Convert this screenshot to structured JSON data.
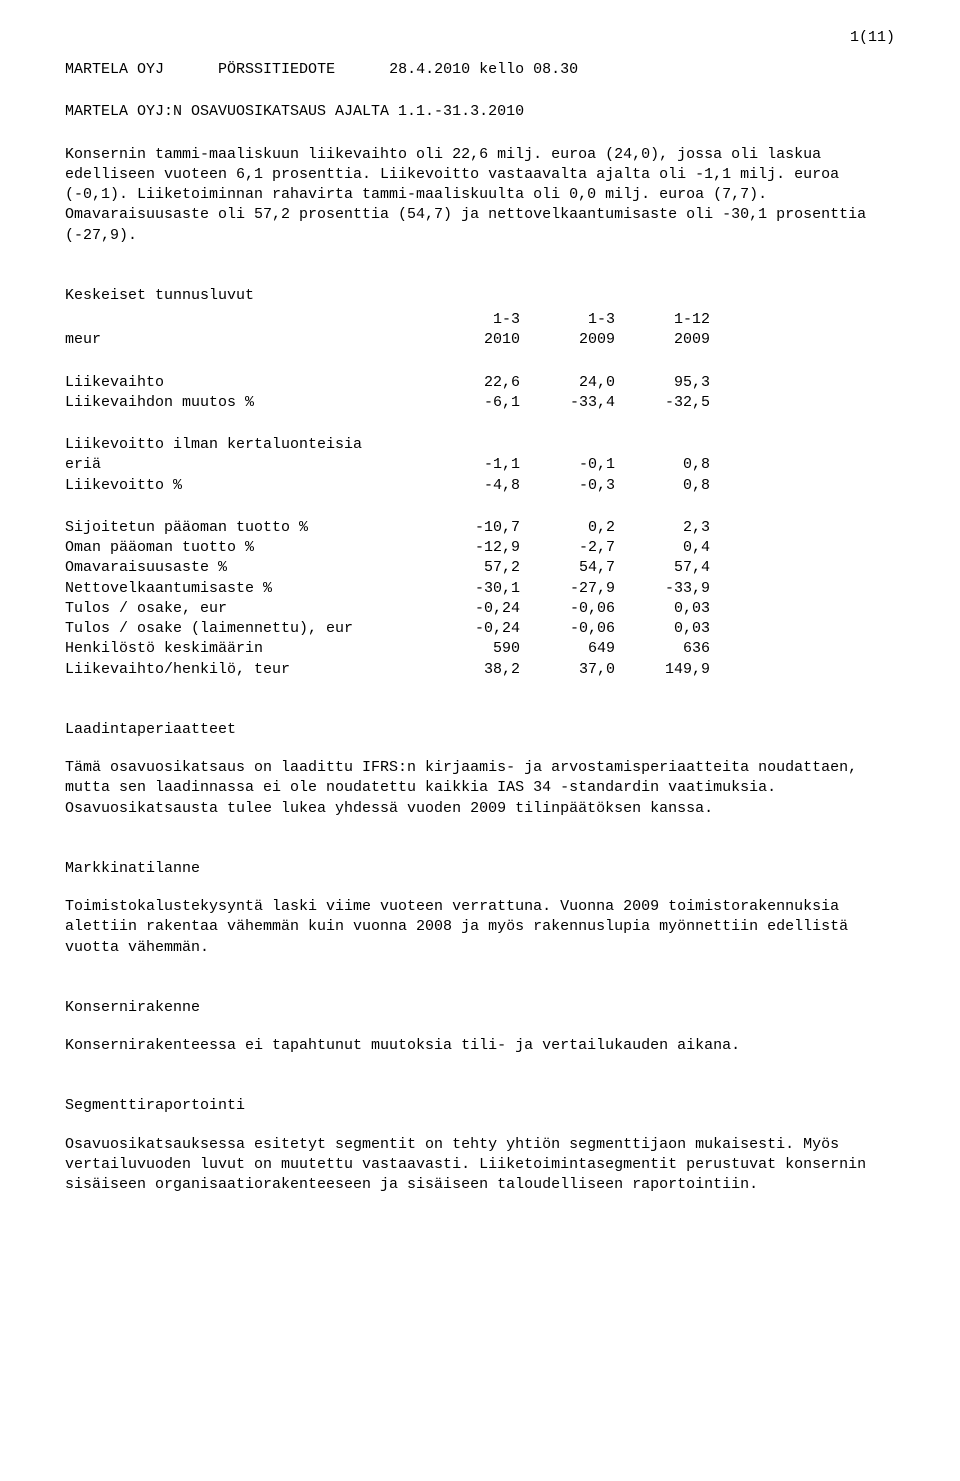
{
  "page_number": "1(11)",
  "header": {
    "company": "MARTELA OYJ",
    "doc_type": "PÖRSSITIEDOTE",
    "date_time": "28.4.2010 kello 08.30"
  },
  "title": "MARTELA OYJ:N OSAVUOSIKATSAUS AJALTA 1.1.-31.3.2010",
  "intro": "Konsernin tammi-maaliskuun liikevaihto oli 22,6 milj. euroa (24,0), jossa oli laskua edelliseen vuoteen 6,1 prosenttia. Liikevoitto vastaavalta ajalta oli -1,1 milj. euroa (-0,1). Liiketoiminnan rahavirta tammi-maaliskuulta oli 0,0 milj. euroa (7,7). Omavaraisuusaste oli 57,2 prosenttia (54,7) ja nettovelkaantumisaste oli -30,1 prosenttia (-27,9).",
  "table": {
    "title": "Keskeiset tunnusluvut",
    "header_row1": [
      "",
      "1-3",
      "1-3",
      "1-12"
    ],
    "header_row2": [
      "meur",
      "2010",
      "2009",
      "2009"
    ],
    "groups": [
      {
        "rows": [
          {
            "label": "Liikevaihto",
            "values": [
              "22,6",
              "24,0",
              "95,3"
            ]
          },
          {
            "label": "Liikevaihdon muutos %",
            "values": [
              "-6,1",
              "-33,4",
              "-32,5"
            ]
          }
        ]
      },
      {
        "rows": [
          {
            "label": "Liikevoitto ilman kertaluonteisia",
            "values": [
              "",
              "",
              ""
            ]
          },
          {
            "label": "eriä",
            "values": [
              "-1,1",
              "-0,1",
              "0,8"
            ]
          },
          {
            "label": "Liikevoitto %",
            "values": [
              "-4,8",
              "-0,3",
              "0,8"
            ]
          }
        ]
      },
      {
        "rows": [
          {
            "label": "Sijoitetun pääoman tuotto %",
            "values": [
              "-10,7",
              "0,2",
              "2,3"
            ]
          },
          {
            "label": "Oman pääoman tuotto %",
            "values": [
              "-12,9",
              "-2,7",
              "0,4"
            ]
          },
          {
            "label": "Omavaraisuusaste %",
            "values": [
              "57,2",
              "54,7",
              "57,4"
            ]
          },
          {
            "label": "Nettovelkaantumisaste %",
            "values": [
              "-30,1",
              "-27,9",
              "-33,9"
            ]
          },
          {
            "label": "Tulos / osake, eur",
            "values": [
              "-0,24",
              "-0,06",
              "0,03"
            ]
          },
          {
            "label": "Tulos / osake (laimennettu), eur",
            "values": [
              "-0,24",
              "-0,06",
              "0,03"
            ]
          },
          {
            "label": "Henkilöstö keskimäärin",
            "values": [
              "590",
              "649",
              "636"
            ]
          },
          {
            "label": "Liikevaihto/henkilö, teur",
            "values": [
              "38,2",
              "37,0",
              "149,9"
            ]
          }
        ]
      }
    ]
  },
  "sections": [
    {
      "heading": "Laadintaperiaatteet",
      "paragraphs": [
        "Tämä osavuosikatsaus on laadittu IFRS:n kirjaamis- ja arvostamisperiaatteita noudattaen, mutta sen laadinnassa ei ole noudatettu kaikkia IAS 34 -standardin vaatimuksia. Osavuosikatsausta tulee lukea yhdessä vuoden 2009 tilinpäätöksen kanssa."
      ]
    },
    {
      "heading": "Markkinatilanne",
      "paragraphs": [
        "Toimistokalustekysyntä laski viime vuoteen verrattuna. Vuonna 2009 toimistorakennuksia alettiin rakentaa vähemmän kuin vuonna 2008 ja myös rakennuslupia myönnettiin edellistä vuotta vähemmän."
      ]
    },
    {
      "heading": "Konsernirakenne",
      "paragraphs": [
        "Konsernirakenteessa ei tapahtunut muutoksia tili- ja vertailukauden aikana."
      ]
    },
    {
      "heading": "Segmenttiraportointi",
      "paragraphs": [
        "Osavuosikatsauksessa esitetyt segmentit on tehty yhtiön segmenttijaon mukaisesti. Myös vertailuvuoden luvut on muutettu vastaavasti. Liiketoimintasegmentit perustuvat konsernin sisäiseen organisaatiorakenteeseen ja sisäiseen taloudelliseen raportointiin."
      ]
    }
  ]
}
